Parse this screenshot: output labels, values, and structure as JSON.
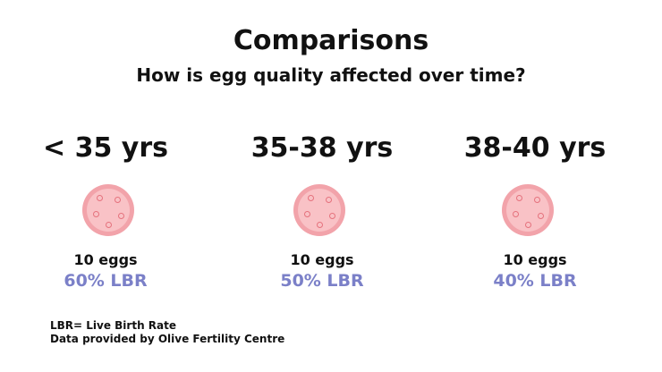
{
  "title": "Comparisons",
  "subtitle": "How is egg quality affected over time?",
  "groups": [
    {
      "age": "< 35 yrs",
      "count": "10 eggs",
      "lbr": "60% LBR"
    },
    {
      "age": "35-38 yrs",
      "count": "10 eggs",
      "lbr": "50% LBR"
    },
    {
      "age": "38-40 yrs",
      "count": "10 eggs",
      "lbr": "40% LBR"
    }
  ],
  "footnotes": [
    "LBR= Live Birth Rate",
    "Data provided by Olive Fertility Centre"
  ],
  "colors": {
    "lbr": "#7b80c8",
    "egg_outer": "#f2a3aa",
    "egg_inner": "#f9c2c6"
  },
  "icons": {
    "egg": "egg-cell-icon"
  }
}
